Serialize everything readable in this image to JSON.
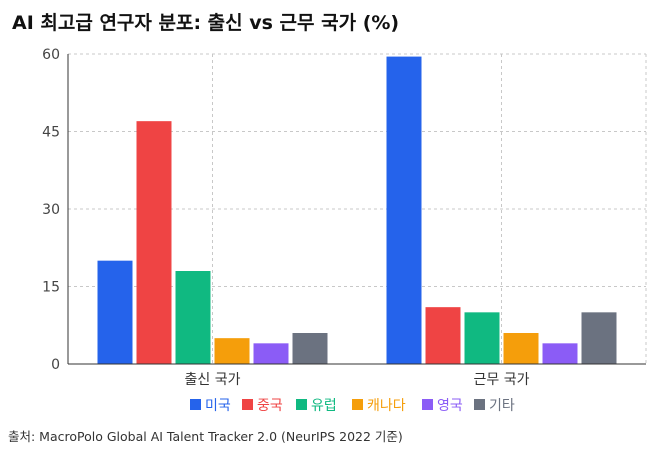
{
  "title": "AI 최고급 연구자 분포: 출신 vs 근무 국가 (%)",
  "source": "출처: MacroPolo Global AI Talent Tracker 2.0 (NeurIPS 2022 기준)",
  "chart_data": {
    "type": "bar",
    "title": "AI 최고급 연구자 분포: 출신 vs 근무 국가 (%)",
    "xlabel": "",
    "ylabel": "",
    "categories": [
      "출신 국가",
      "근무 국가"
    ],
    "ylim": [
      0,
      60
    ],
    "yticks": [
      0,
      15,
      30,
      45,
      60
    ],
    "grid": true,
    "legend_position": "bottom",
    "series": [
      {
        "name": "미국",
        "color": "#2563eb",
        "values": [
          20,
          59.5
        ]
      },
      {
        "name": "중국",
        "color": "#ef4444",
        "values": [
          47,
          11
        ]
      },
      {
        "name": "유럽",
        "color": "#10b981",
        "values": [
          18,
          10
        ]
      },
      {
        "name": "캐나다",
        "color": "#f59e0b",
        "values": [
          5,
          6
        ]
      },
      {
        "name": "영국",
        "color": "#8b5cf6",
        "values": [
          4,
          4
        ]
      },
      {
        "name": "기타",
        "color": "#6b7280",
        "values": [
          6,
          10
        ]
      }
    ]
  }
}
